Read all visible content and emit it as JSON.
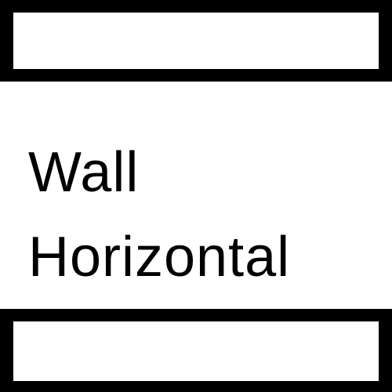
{
  "label": {
    "line1": "Wall",
    "line2": "Horizontal"
  },
  "colors": {
    "background": "#ffffff",
    "wall": "#000000"
  }
}
